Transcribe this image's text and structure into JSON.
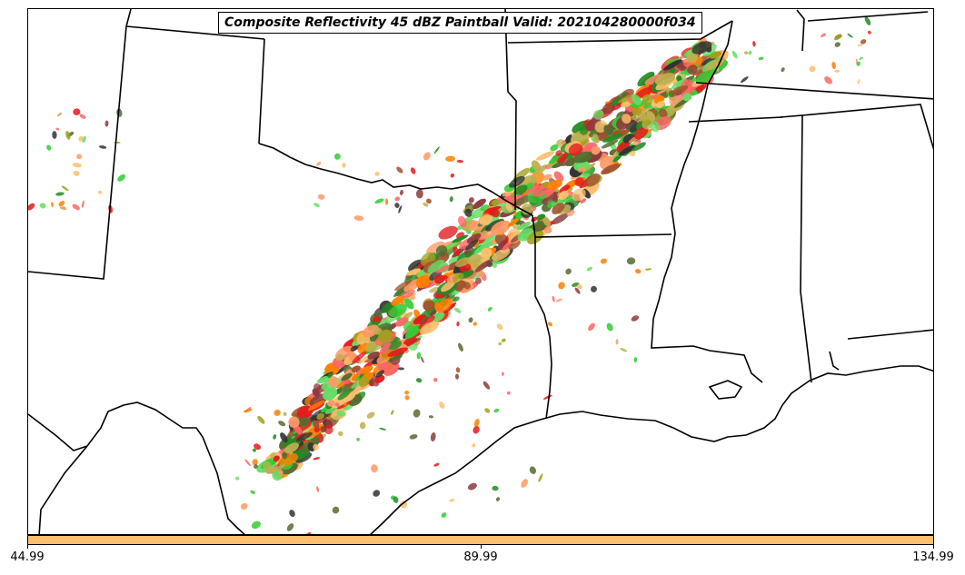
{
  "title": "Composite Reflectivity 45 dBZ Paintball Valid: 202104280000f034",
  "colorbar": {
    "color": "#FDBF6F",
    "ticks": [
      "44.99",
      "89.99",
      "134.99"
    ]
  },
  "map": {
    "background": "#ffffff",
    "boundaries": "state borders and Gulf coastline (black lines)",
    "member_colors": [
      "#33CC33",
      "#228B22",
      "#556B2F",
      "#E31A1C",
      "#FF6666",
      "#FF8000",
      "#FDBF6F",
      "#FF9966",
      "#A0A020",
      "#BDB050",
      "#8B3A3A",
      "#A0522D",
      "#333333",
      "#66DD66"
    ]
  },
  "chart_data": {
    "type": "map",
    "title": "Composite Reflectivity 45 dBZ Paintball Valid: 202104280000f034",
    "colorbar_range": [
      44.99,
      134.99
    ],
    "colorbar_ticks": [
      44.99,
      89.99,
      134.99
    ]
  }
}
